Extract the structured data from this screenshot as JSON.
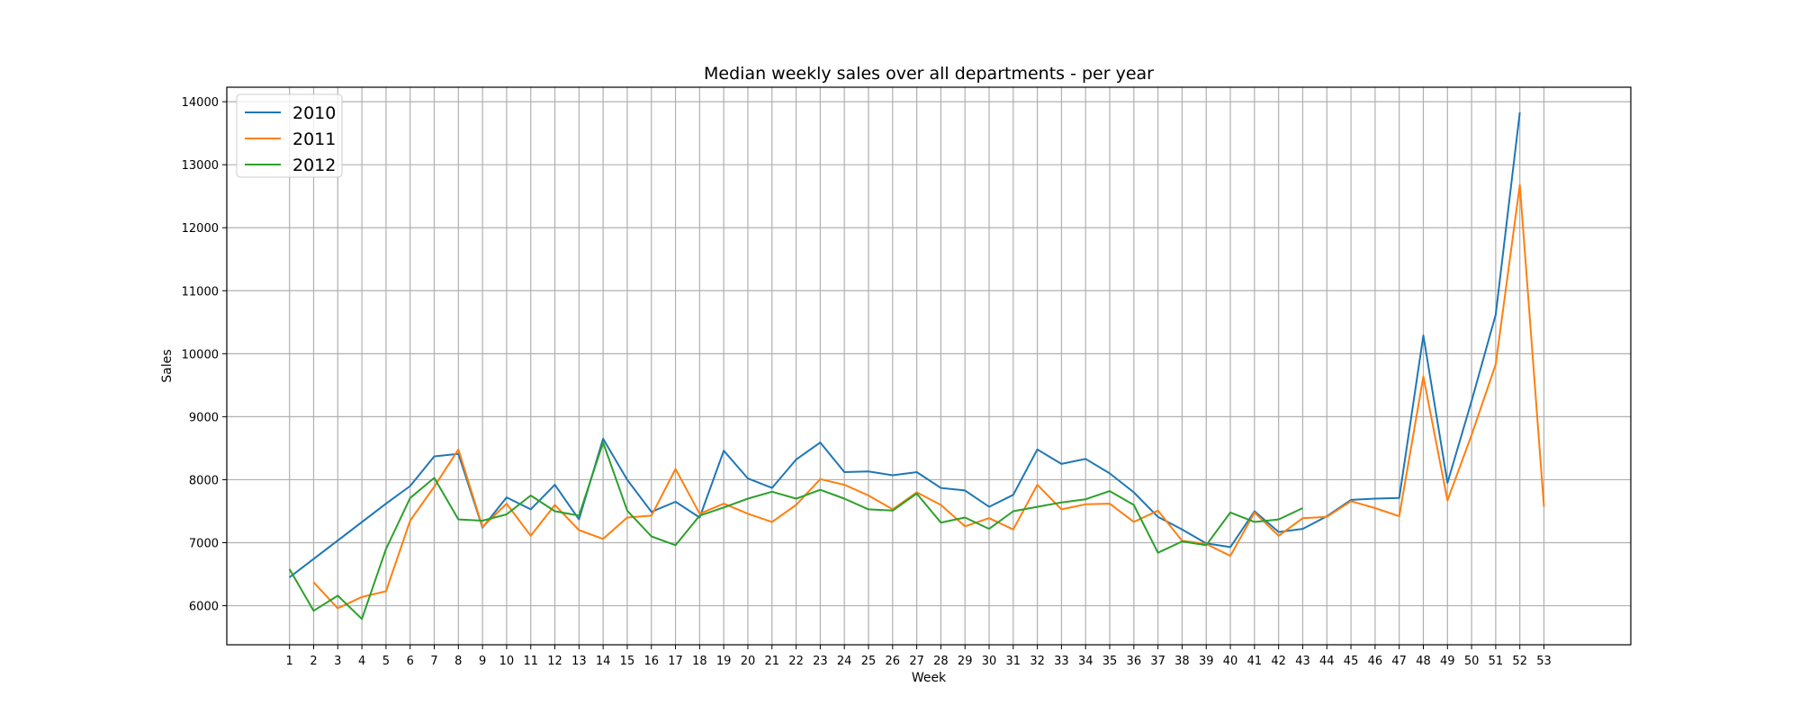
{
  "chart_data": {
    "type": "line",
    "title": "Median weekly sales over all departments - per year",
    "xlabel": "Week",
    "ylabel": "Sales",
    "xlim": [
      -1.6,
      56.6
    ],
    "ylim": [
      5380,
      14230
    ],
    "x_ticks": [
      1,
      2,
      3,
      4,
      5,
      6,
      7,
      8,
      9,
      10,
      11,
      12,
      13,
      14,
      15,
      16,
      17,
      18,
      19,
      20,
      21,
      22,
      23,
      24,
      25,
      26,
      27,
      28,
      29,
      30,
      31,
      32,
      33,
      34,
      35,
      36,
      37,
      38,
      39,
      40,
      41,
      42,
      43,
      44,
      45,
      46,
      47,
      48,
      49,
      50,
      51,
      52,
      53
    ],
    "y_ticks": [
      6000,
      7000,
      8000,
      9000,
      10000,
      11000,
      12000,
      13000,
      14000
    ],
    "grid": true,
    "legend_position": "top-left",
    "series": [
      {
        "name": "2010",
        "color": "#1f77b4",
        "x": [
          1,
          5,
          6,
          7,
          8,
          9,
          10,
          11,
          12,
          13,
          14,
          15,
          16,
          17,
          18,
          19,
          20,
          21,
          22,
          23,
          24,
          25,
          26,
          27,
          28,
          29,
          30,
          31,
          32,
          33,
          34,
          35,
          36,
          37,
          38,
          39,
          40,
          41,
          42,
          43,
          44,
          45,
          46,
          47,
          48,
          49,
          50,
          51,
          52
        ],
        "values": [
          6450,
          7620,
          7900,
          8370,
          8410,
          7240,
          7720,
          7530,
          7920,
          7370,
          8650,
          8000,
          7490,
          7650,
          7400,
          8460,
          8020,
          7870,
          8320,
          8590,
          8120,
          8130,
          8070,
          8120,
          7870,
          7830,
          7570,
          7760,
          8480,
          8250,
          8330,
          8100,
          7800,
          7410,
          7210,
          6990,
          6930,
          7500,
          7170,
          7220,
          7420,
          7680,
          7700,
          7710,
          10290,
          7950,
          9250,
          10620,
          13830
        ]
      },
      {
        "name": "2011",
        "color": "#ff7f0e",
        "x": [
          2,
          3,
          4,
          5,
          6,
          7,
          8,
          9,
          10,
          11,
          12,
          13,
          14,
          15,
          16,
          17,
          18,
          19,
          20,
          21,
          22,
          23,
          24,
          25,
          26,
          27,
          28,
          29,
          30,
          31,
          32,
          33,
          34,
          35,
          36,
          37,
          38,
          39,
          40,
          41,
          42,
          43,
          44,
          45,
          46,
          47,
          48,
          49,
          50,
          51,
          52,
          53
        ],
        "values": [
          6370,
          5960,
          6140,
          6230,
          7350,
          7890,
          8480,
          7250,
          7620,
          7110,
          7600,
          7200,
          7060,
          7400,
          7430,
          8170,
          7460,
          7620,
          7460,
          7330,
          7600,
          8010,
          7920,
          7750,
          7530,
          7800,
          7600,
          7260,
          7390,
          7210,
          7920,
          7530,
          7610,
          7620,
          7330,
          7510,
          7030,
          6980,
          6790,
          7480,
          7110,
          7390,
          7410,
          7660,
          7550,
          7420,
          9640,
          7670,
          8710,
          9830,
          12680,
          7570
        ]
      },
      {
        "name": "2012",
        "color": "#2ca02c",
        "x": [
          1,
          2,
          3,
          4,
          5,
          6,
          7,
          8,
          9,
          10,
          11,
          12,
          13,
          14,
          15,
          16,
          17,
          18,
          19,
          20,
          21,
          22,
          23,
          24,
          25,
          26,
          27,
          28,
          29,
          30,
          31,
          32,
          33,
          34,
          35,
          36,
          37,
          38,
          39,
          40,
          41,
          42,
          43
        ],
        "values": [
          6580,
          5920,
          6160,
          5790,
          6900,
          7710,
          8030,
          7370,
          7350,
          7450,
          7750,
          7500,
          7430,
          8590,
          7510,
          7100,
          6960,
          7430,
          7560,
          7700,
          7810,
          7700,
          7840,
          7700,
          7530,
          7510,
          7780,
          7320,
          7400,
          7220,
          7500,
          7570,
          7640,
          7690,
          7820,
          7600,
          6840,
          7020,
          6960,
          7480,
          7330,
          7370,
          7550
        ]
      }
    ]
  }
}
